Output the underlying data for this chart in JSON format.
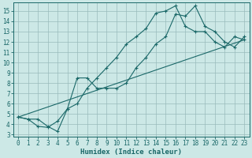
{
  "xlabel": "Humidex (Indice chaleur)",
  "bg_color": "#cce8e6",
  "grid_color": "#99bbbb",
  "line_color": "#1a6868",
  "xlim": [
    -0.5,
    23.5
  ],
  "ylim": [
    2.8,
    15.8
  ],
  "yticks": [
    3,
    4,
    5,
    6,
    7,
    8,
    9,
    10,
    11,
    12,
    13,
    14,
    15
  ],
  "xticks": [
    0,
    1,
    2,
    3,
    4,
    5,
    6,
    7,
    8,
    9,
    10,
    11,
    12,
    13,
    14,
    15,
    16,
    17,
    18,
    19,
    20,
    21,
    22,
    23
  ],
  "line1_x": [
    0,
    1,
    2,
    3,
    4,
    5,
    6,
    7,
    8,
    9,
    10,
    11,
    12,
    13,
    14,
    15,
    16,
    17,
    18,
    19,
    20,
    21,
    22,
    23
  ],
  "line1_y": [
    4.7,
    4.5,
    4.5,
    3.8,
    3.3,
    5.5,
    8.5,
    8.5,
    7.5,
    7.5,
    7.5,
    8.0,
    9.5,
    10.5,
    11.8,
    12.5,
    14.7,
    14.5,
    15.5,
    13.5,
    13.0,
    12.0,
    11.5,
    12.5
  ],
  "line2_x": [
    0,
    1,
    2,
    3,
    4,
    5,
    6,
    7,
    8,
    9,
    10,
    11,
    12,
    13,
    14,
    15,
    16,
    17,
    18,
    19,
    20,
    21,
    22,
    23
  ],
  "line2_y": [
    4.7,
    4.5,
    3.8,
    3.7,
    4.3,
    5.5,
    6.0,
    7.5,
    8.5,
    9.5,
    10.5,
    11.8,
    12.5,
    13.3,
    14.8,
    15.0,
    15.5,
    13.5,
    13.0,
    13.0,
    12.0,
    11.5,
    12.5,
    12.2
  ],
  "line3_x": [
    0,
    23
  ],
  "line3_y": [
    4.7,
    12.2
  ]
}
